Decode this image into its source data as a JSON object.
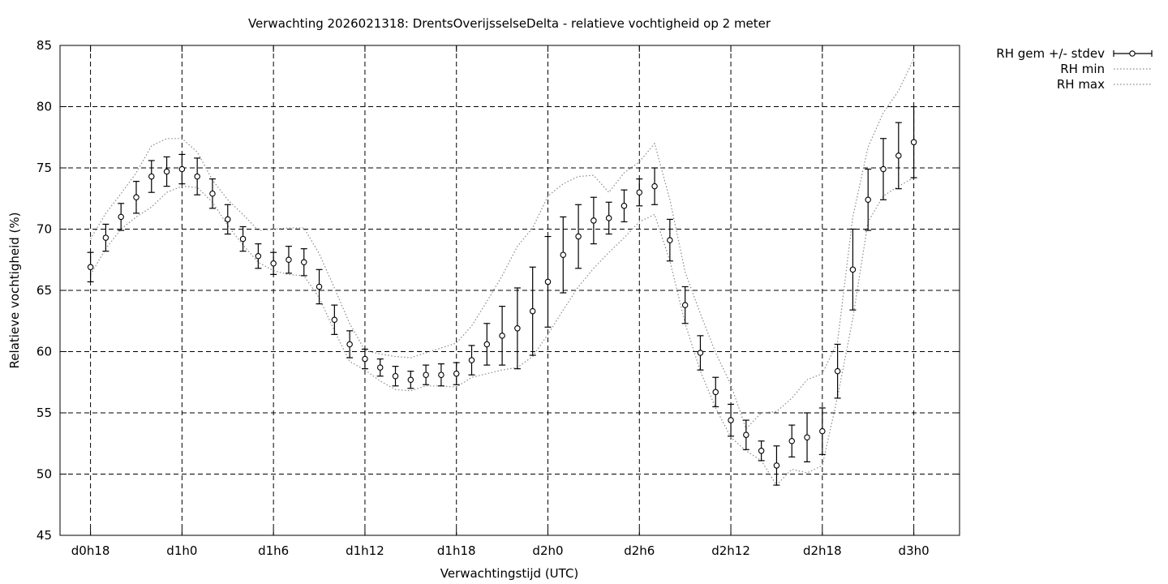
{
  "chart_data": {
    "type": "line",
    "title": "Verwachting 2026021318: DrentsOverijsselseDelta - relatieve vochtigheid op 2 meter",
    "xlabel": "Verwachtingstijd (UTC)",
    "ylabel": "Relatieve vochtigheid (%)",
    "xlim": [
      16,
      75
    ],
    "ylim": [
      45,
      85
    ],
    "yticks": [
      45,
      50,
      55,
      60,
      65,
      70,
      75,
      80,
      85
    ],
    "xticks": [
      {
        "x": 18,
        "label": "d0h18"
      },
      {
        "x": 24,
        "label": "d1h0"
      },
      {
        "x": 30,
        "label": "d1h6"
      },
      {
        "x": 36,
        "label": "d1h12"
      },
      {
        "x": 42,
        "label": "d1h18"
      },
      {
        "x": 48,
        "label": "d2h0"
      },
      {
        "x": 54,
        "label": "d2h6"
      },
      {
        "x": 60,
        "label": "d2h12"
      },
      {
        "x": 66,
        "label": "d2h18"
      },
      {
        "x": 72,
        "label": "d3h0"
      }
    ],
    "grid": true,
    "legend_position": "outside-top-right",
    "x": [
      18,
      19,
      20,
      21,
      22,
      23,
      24,
      25,
      26,
      27,
      28,
      29,
      30,
      31,
      32,
      33,
      34,
      35,
      36,
      37,
      38,
      39,
      40,
      41,
      42,
      43,
      44,
      45,
      46,
      47,
      48,
      49,
      50,
      51,
      52,
      53,
      54,
      55,
      56,
      57,
      58,
      59,
      60,
      61,
      62,
      63,
      64,
      65,
      66,
      67,
      68,
      69,
      70,
      71,
      72
    ],
    "series": [
      {
        "name": "RH gem +/- stdev",
        "style": "errorbars",
        "mean": [
          66.9,
          69.3,
          71.0,
          72.6,
          74.3,
          74.7,
          74.9,
          74.3,
          72.9,
          70.8,
          69.2,
          67.8,
          67.2,
          67.5,
          67.3,
          65.3,
          62.6,
          60.6,
          59.4,
          58.7,
          58.0,
          57.7,
          58.1,
          58.1,
          58.2,
          59.3,
          60.6,
          61.3,
          61.9,
          63.3,
          65.7,
          67.9,
          69.4,
          70.7,
          70.9,
          71.9,
          73.0,
          73.5,
          69.1,
          63.8,
          59.9,
          56.7,
          54.4,
          53.2,
          51.9,
          50.7,
          52.7,
          53.0,
          53.5,
          58.4,
          66.7,
          72.4,
          74.9,
          76.0,
          77.1
        ],
        "stdev": [
          1.2,
          1.1,
          1.1,
          1.3,
          1.3,
          1.2,
          1.2,
          1.5,
          1.2,
          1.2,
          1.0,
          1.0,
          0.9,
          1.1,
          1.1,
          1.4,
          1.2,
          1.1,
          0.8,
          0.7,
          0.8,
          0.7,
          0.8,
          0.9,
          0.9,
          1.2,
          1.7,
          2.4,
          3.3,
          3.6,
          3.7,
          3.1,
          2.6,
          1.9,
          1.3,
          1.3,
          1.1,
          1.5,
          1.7,
          1.5,
          1.4,
          1.2,
          1.3,
          1.2,
          0.8,
          1.6,
          1.3,
          2.0,
          1.9,
          2.2,
          3.3,
          2.5,
          2.5,
          2.7,
          2.9
        ]
      },
      {
        "name": "RH min",
        "style": "dotted",
        "values": [
          66.3,
          68.4,
          70.0,
          71.0,
          71.8,
          73.0,
          73.5,
          73.4,
          72.2,
          70.3,
          68.7,
          67.3,
          66.6,
          66.3,
          66.2,
          64.4,
          61.7,
          59.2,
          58.5,
          57.6,
          56.9,
          56.8,
          57.2,
          57.2,
          57.1,
          57.9,
          58.2,
          58.5,
          58.7,
          59.6,
          61.4,
          63.4,
          65.3,
          66.8,
          68.1,
          69.3,
          70.6,
          71.2,
          67.4,
          62.3,
          58.4,
          55.4,
          53.0,
          51.9,
          51.1,
          49.1,
          50.4,
          50.1,
          50.7,
          56.3,
          62.7,
          70.6,
          72.7,
          73.5,
          74.2
        ]
      },
      {
        "name": "RH max",
        "style": "dotted",
        "values": [
          69.2,
          71.3,
          72.9,
          74.6,
          76.8,
          77.4,
          77.4,
          76.3,
          74.0,
          72.4,
          71.2,
          69.9,
          70.0,
          70.1,
          70.1,
          68.0,
          65.2,
          62.3,
          60.1,
          59.8,
          59.6,
          59.5,
          59.9,
          60.3,
          60.7,
          62.1,
          64.1,
          66.2,
          68.6,
          70.1,
          72.7,
          73.7,
          74.3,
          74.4,
          73.0,
          74.6,
          75.5,
          77.0,
          72.4,
          66.5,
          63.1,
          59.9,
          57.3,
          53.7,
          55.0,
          55.1,
          56.2,
          57.7,
          58.2,
          60.8,
          71.0,
          76.7,
          79.5,
          81.3,
          83.9
        ]
      }
    ]
  }
}
